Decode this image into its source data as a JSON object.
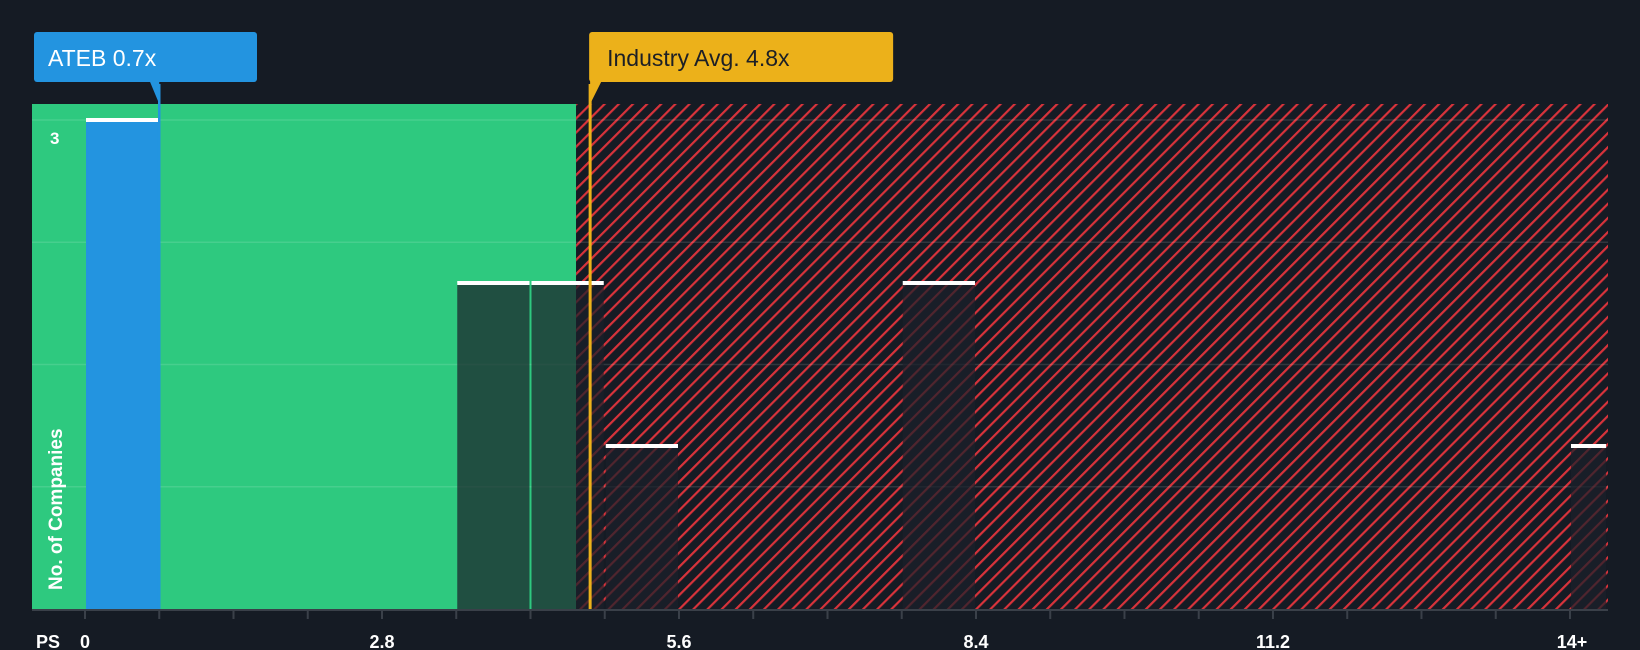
{
  "chart_data": {
    "type": "bar",
    "title": "",
    "xlabel": "PS",
    "ylabel": "No. of Companies",
    "xlim": [
      0,
      14
    ],
    "ylim": [
      0,
      3
    ],
    "x_ticks": [
      "0",
      "2.8",
      "5.6",
      "8.4",
      "11.2",
      "14+"
    ],
    "x_tick_values": [
      0,
      2.8,
      5.6,
      8.4,
      11.2,
      14
    ],
    "y_tick_labels": [
      "3"
    ],
    "bin_width": 0.7,
    "bars": [
      {
        "start": 0,
        "end": 0.7,
        "count": 3,
        "highlight": true
      },
      {
        "start": 3.5,
        "end": 4.2,
        "count": 2
      },
      {
        "start": 4.2,
        "end": 4.9,
        "count": 2
      },
      {
        "start": 4.9,
        "end": 5.6,
        "count": 1
      },
      {
        "start": 7.7,
        "end": 8.4,
        "count": 2
      },
      {
        "start": 14,
        "end": 14.35,
        "count": 1
      }
    ],
    "company": {
      "label": "ATEB 0.7x",
      "value": 0.7
    },
    "industry": {
      "label": "Industry Avg. 4.8x",
      "value": 4.8
    },
    "fair_range_end": 4.63,
    "colors": {
      "background": "#151b24",
      "green": "#2ec97f",
      "blue": "#2394e0",
      "gold": "#ecb11a",
      "red": "#d8333b"
    }
  }
}
